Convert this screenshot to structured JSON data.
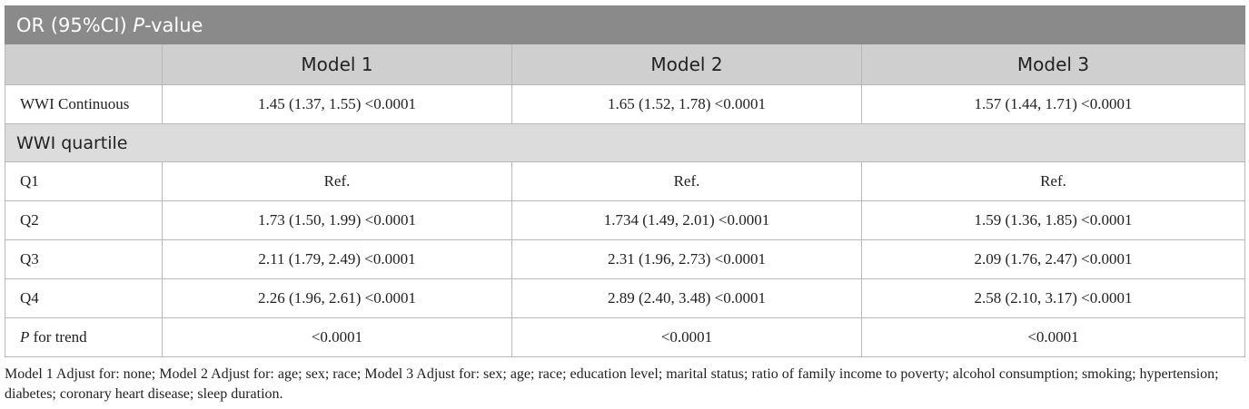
{
  "table": {
    "title_prefix": "OR (95%CI) ",
    "title_p": "P",
    "title_suffix": "-value",
    "columns": [
      "",
      "Model 1",
      "Model 2",
      "Model 3"
    ],
    "continuous_row": {
      "label": "WWI Continuous",
      "values": [
        "1.45 (1.37, 1.55) <0.0001",
        "1.65 (1.52, 1.78) <0.0001",
        "1.57 (1.44, 1.71) <0.0001"
      ]
    },
    "section_label": "WWI quartile",
    "quartile_rows": [
      {
        "label": "Q1",
        "values": [
          "Ref.",
          "Ref.",
          "Ref."
        ]
      },
      {
        "label": "Q2",
        "values": [
          "1.73 (1.50, 1.99) <0.0001",
          "1.734 (1.49, 2.01) <0.0001",
          "1.59 (1.36, 1.85) <0.0001"
        ]
      },
      {
        "label": "Q3",
        "values": [
          "2.11 (1.79, 2.49) <0.0001",
          "2.31 (1.96, 2.73) <0.0001",
          "2.09 (1.76, 2.47) <0.0001"
        ]
      },
      {
        "label": "Q4",
        "values": [
          "2.26 (1.96, 2.61) <0.0001",
          "2.89 (2.40, 3.48) <0.0001",
          "2.58 (2.10, 3.17) <0.0001"
        ]
      }
    ],
    "trend_row": {
      "label_p": "P",
      "label_rest": " for trend",
      "values": [
        "<0.0001",
        "<0.0001",
        "<0.0001"
      ]
    }
  },
  "footnote": "Model 1 Adjust for: none; Model 2 Adjust for: age; sex; race; Model 3 Adjust for: sex; age; race; education level; marital status; ratio of family income to poverty; alcohol consumption; smoking; hypertension; diabetes; coronary heart disease; sleep duration."
}
